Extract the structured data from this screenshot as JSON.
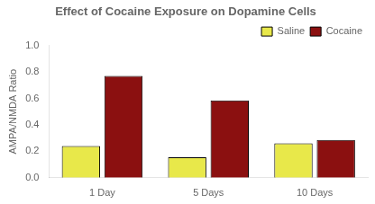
{
  "chart_data": {
    "type": "bar",
    "title": "Effect of Cocaine Exposure on Dopamine Cells",
    "ylabel": "AMPA/NMDA Ratio",
    "categories": [
      "1 Day",
      "5 Days",
      "10 Days"
    ],
    "series": [
      {
        "name": "Saline",
        "color": "#e8e84a",
        "values": [
          0.24,
          0.155,
          0.26
        ]
      },
      {
        "name": "Cocaine",
        "color": "#8b1010",
        "values": [
          0.77,
          0.585,
          0.285
        ]
      }
    ],
    "ylim": [
      0,
      1.0
    ],
    "yticks": [
      {
        "value": 0,
        "label": "0.0"
      },
      0.2,
      0.4,
      0.6,
      0.8,
      {
        "value": 1.0,
        "label": "1.0"
      }
    ],
    "grid": false,
    "legend": "upper right"
  }
}
